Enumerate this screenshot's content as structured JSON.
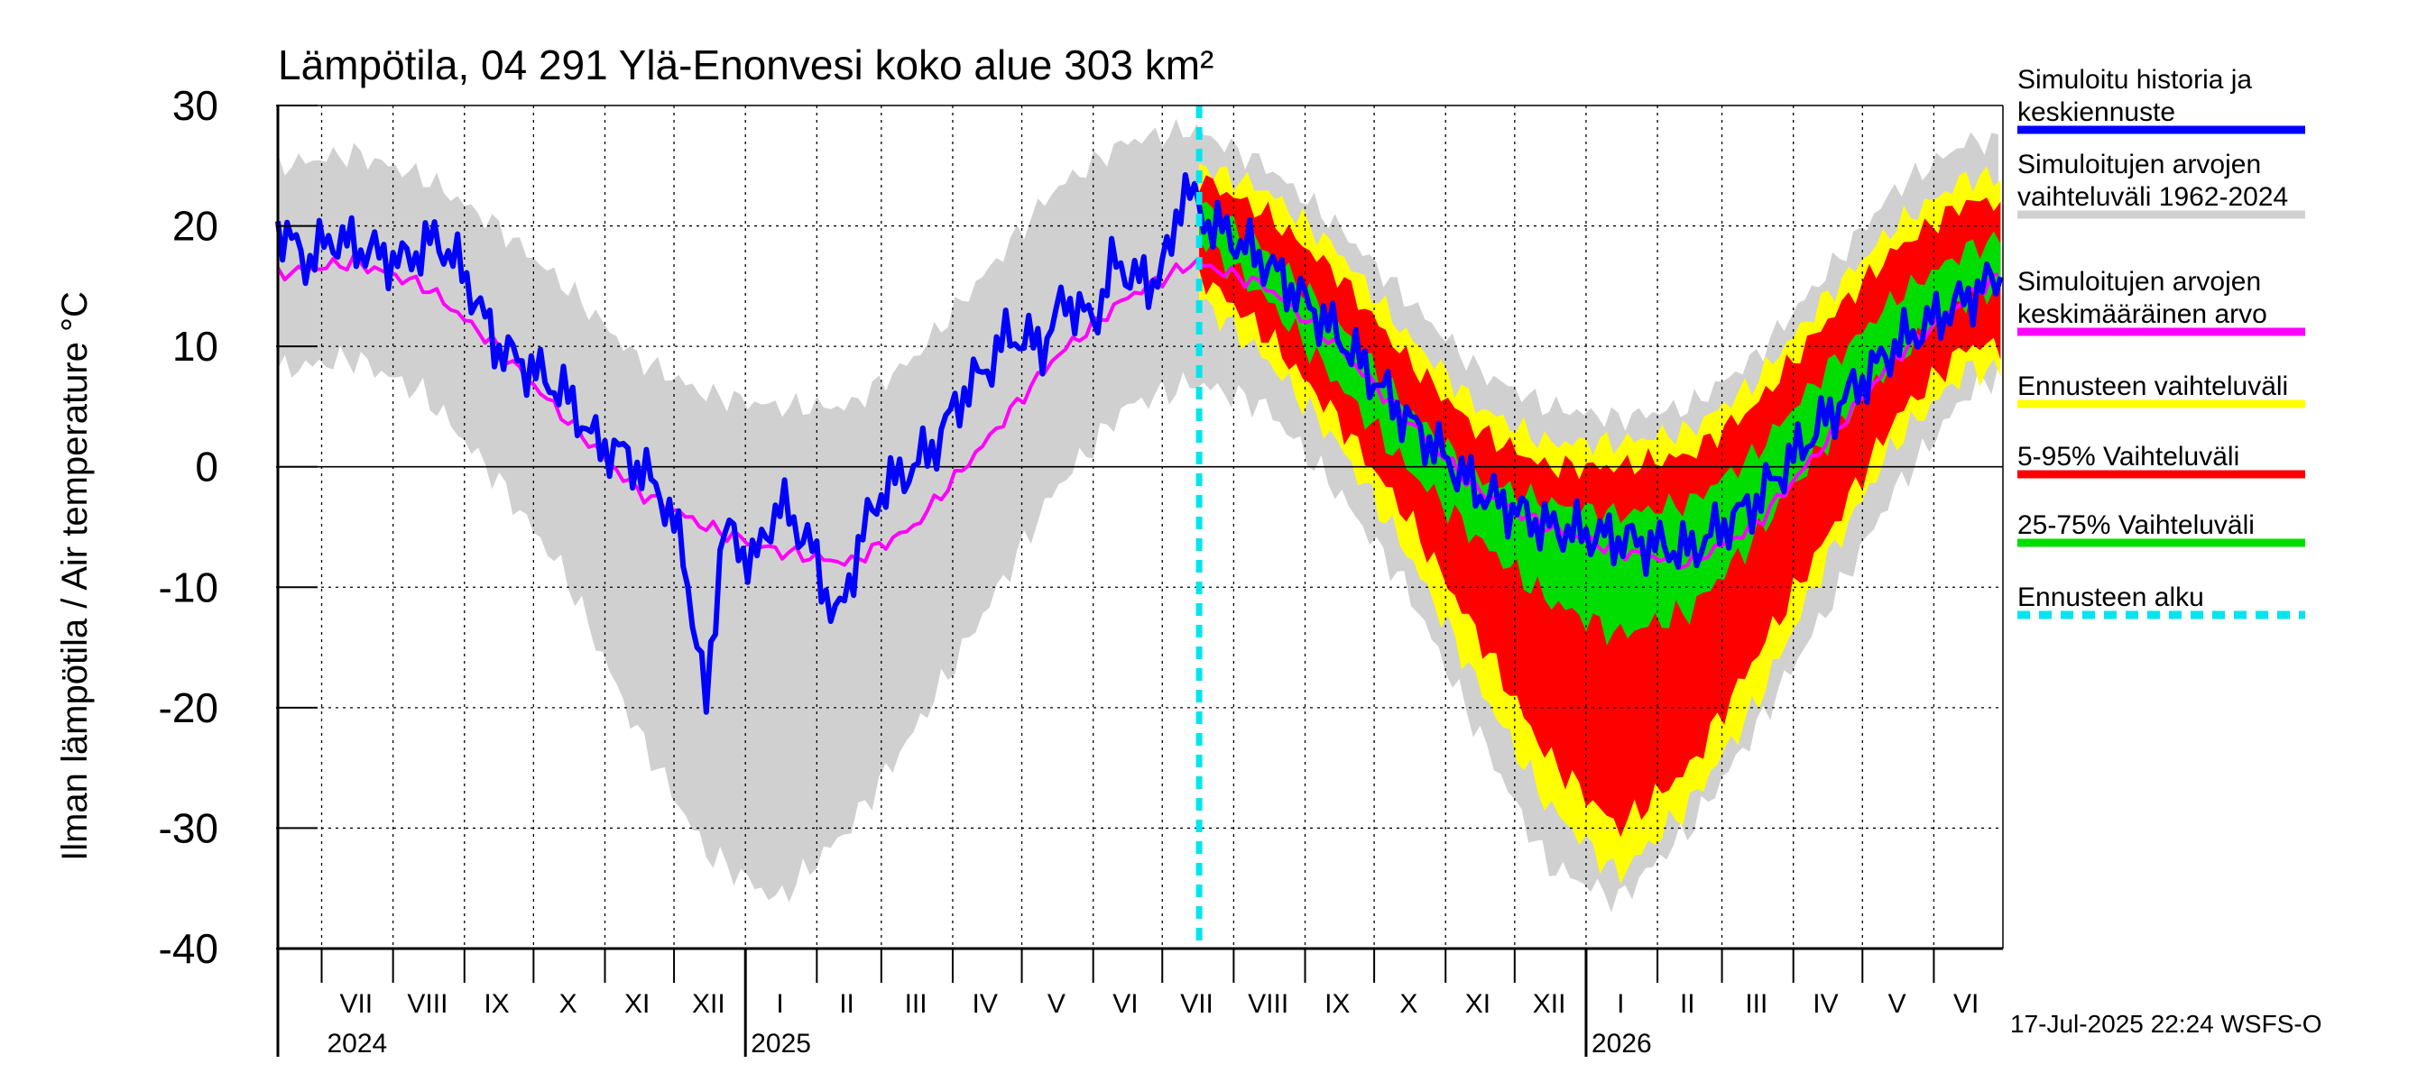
{
  "chart_data": {
    "type": "area",
    "title": "Lämpötila, 04 291 Ylä-Enonvesi koko alue 303 km²",
    "ylabel": "Ilman lämpötila / Air temperature   °C",
    "xlabel": "",
    "ylim": [
      -40,
      30
    ],
    "yticks": [
      30,
      20,
      10,
      0,
      -10,
      -20,
      -30,
      -40
    ],
    "x_range": [
      "2024-06-12",
      "2026-07-01"
    ],
    "forecast_start": "2025-07-17",
    "grid": true,
    "legend_position": "right",
    "month_labels": [
      {
        "label": "VII",
        "date": "2024-07-16"
      },
      {
        "label": "VIII",
        "date": "2024-08-16"
      },
      {
        "label": "IX",
        "date": "2024-09-15"
      },
      {
        "label": "X",
        "date": "2024-10-16"
      },
      {
        "label": "XI",
        "date": "2024-11-15"
      },
      {
        "label": "XII",
        "date": "2024-12-16"
      },
      {
        "label": "I",
        "date": "2025-01-16"
      },
      {
        "label": "II",
        "date": "2025-02-14"
      },
      {
        "label": "III",
        "date": "2025-03-16"
      },
      {
        "label": "IV",
        "date": "2025-04-15"
      },
      {
        "label": "V",
        "date": "2025-05-16"
      },
      {
        "label": "VI",
        "date": "2025-06-15"
      },
      {
        "label": "VII",
        "date": "2025-07-16"
      },
      {
        "label": "VIII",
        "date": "2025-08-16"
      },
      {
        "label": "IX",
        "date": "2025-09-15"
      },
      {
        "label": "X",
        "date": "2025-10-16"
      },
      {
        "label": "XI",
        "date": "2025-11-15"
      },
      {
        "label": "XII",
        "date": "2025-12-16"
      },
      {
        "label": "I",
        "date": "2026-01-16"
      },
      {
        "label": "II",
        "date": "2026-02-14"
      },
      {
        "label": "III",
        "date": "2026-03-16"
      },
      {
        "label": "IV",
        "date": "2026-04-15"
      },
      {
        "label": "V",
        "date": "2026-05-16"
      },
      {
        "label": "VI",
        "date": "2026-06-15"
      }
    ],
    "year_labels": [
      {
        "label": "2024",
        "date": "2024-07-01"
      },
      {
        "label": "2025",
        "date": "2025-01-01"
      },
      {
        "label": "2026",
        "date": "2026-01-01"
      }
    ],
    "series": [
      {
        "name": "Simuloitujen arvojen vaihteluväli 1962-2024",
        "style": "band",
        "color": "#d0d0d0",
        "x": [
          "2024-06-12",
          "2024-07-15",
          "2024-08-15",
          "2024-09-15",
          "2024-10-15",
          "2024-11-15",
          "2024-12-15",
          "2025-01-15",
          "2025-02-15",
          "2025-03-15",
          "2025-04-15",
          "2025-05-15",
          "2025-06-15",
          "2025-07-15",
          "2025-08-15",
          "2025-09-15",
          "2025-10-15",
          "2025-11-15",
          "2025-12-15",
          "2026-01-15",
          "2026-02-15",
          "2026-03-15",
          "2026-04-15",
          "2026-05-15",
          "2026-06-15",
          "2026-07-01"
        ],
        "upper": [
          25,
          26,
          24,
          20,
          15,
          9,
          6,
          5,
          5,
          9,
          16,
          23,
          27,
          28,
          25,
          20,
          14,
          8,
          5,
          4,
          5,
          9,
          16,
          23,
          27,
          27
        ],
        "lower": [
          8,
          9,
          6,
          -1,
          -9,
          -22,
          -32,
          -36,
          -30,
          -22,
          -12,
          -2,
          5,
          7,
          5,
          -2,
          -10,
          -22,
          -33,
          -36,
          -30,
          -22,
          -12,
          -2,
          6,
          8
        ]
      },
      {
        "name": "Ennusteen vaihteluväli",
        "style": "band",
        "color": "#ffff00",
        "x": [
          "2025-07-17",
          "2025-08-15",
          "2025-09-15",
          "2025-10-15",
          "2025-11-15",
          "2025-12-15",
          "2026-01-15",
          "2026-02-15",
          "2026-03-15",
          "2026-04-15",
          "2026-05-15",
          "2026-06-15",
          "2026-07-01"
        ],
        "upper": [
          25,
          23,
          18,
          11,
          5,
          2,
          2,
          3,
          7,
          14,
          20,
          24,
          24
        ],
        "lower": [
          14,
          9,
          2,
          -7,
          -18,
          -28,
          -34,
          -28,
          -20,
          -8,
          2,
          8,
          8
        ]
      },
      {
        "name": "5-95% Vaihteluväli",
        "style": "band",
        "color": "#ff0000",
        "x": [
          "2025-07-17",
          "2025-08-15",
          "2025-09-15",
          "2025-10-15",
          "2025-11-15",
          "2025-12-15",
          "2026-01-15",
          "2026-02-15",
          "2026-03-15",
          "2026-04-15",
          "2026-05-15",
          "2026-06-15",
          "2026-07-01"
        ],
        "upper": [
          24,
          21,
          16,
          9,
          3,
          0,
          0,
          1,
          5,
          12,
          18,
          22,
          22
        ],
        "lower": [
          16,
          11,
          4,
          -4,
          -14,
          -24,
          -30,
          -25,
          -16,
          -6,
          4,
          10,
          10
        ]
      },
      {
        "name": "25-75% Vaihteluväli",
        "style": "band",
        "color": "#00dd00",
        "x": [
          "2025-07-17",
          "2025-08-15",
          "2025-09-15",
          "2025-10-15",
          "2025-11-15",
          "2025-12-15",
          "2026-01-15",
          "2026-02-15",
          "2026-03-15",
          "2026-04-15",
          "2026-05-15",
          "2026-06-15",
          "2026-07-01"
        ],
        "upper": [
          22,
          18,
          12,
          5,
          -1,
          -3,
          -4,
          -3,
          1,
          8,
          14,
          18,
          19
        ],
        "lower": [
          19,
          14,
          7,
          0,
          -6,
          -11,
          -14,
          -12,
          -6,
          2,
          9,
          14,
          15
        ]
      },
      {
        "name": "Simuloitujen arvojen keskimääräinen arvo",
        "style": "line",
        "color": "#ff00ff",
        "x": [
          "2024-06-12",
          "2024-07-15",
          "2024-08-15",
          "2024-09-15",
          "2024-10-15",
          "2024-11-15",
          "2024-12-15",
          "2025-01-15",
          "2025-02-15",
          "2025-03-15",
          "2025-04-15",
          "2025-05-15",
          "2025-06-15",
          "2025-07-15",
          "2025-08-15",
          "2025-09-15",
          "2025-10-15",
          "2025-11-15",
          "2025-12-15",
          "2026-01-15",
          "2026-02-15",
          "2026-03-15",
          "2026-04-15",
          "2026-05-15",
          "2026-06-15",
          "2026-07-01"
        ],
        "values": [
          16,
          17,
          15,
          10,
          4,
          -2,
          -5,
          -7,
          -8,
          -5,
          2,
          9,
          14,
          17,
          15,
          10,
          4,
          -2,
          -5,
          -7,
          -8,
          -5,
          2,
          9,
          14,
          16
        ]
      },
      {
        "name": "Simuloitu historia ja keskiennuste",
        "style": "line",
        "color": "#0000ff",
        "x": [
          "2024-06-12",
          "2024-06-25",
          "2024-07-05",
          "2024-07-20",
          "2024-08-05",
          "2024-08-20",
          "2024-09-01",
          "2024-09-15",
          "2024-10-01",
          "2024-10-15",
          "2024-10-28",
          "2024-11-10",
          "2024-11-25",
          "2024-12-05",
          "2024-12-15",
          "2024-12-22",
          "2025-01-05",
          "2025-01-15",
          "2025-01-28",
          "2025-02-10",
          "2025-02-20",
          "2025-03-01",
          "2025-03-15",
          "2025-03-25",
          "2025-04-05",
          "2025-04-15",
          "2025-04-25",
          "2025-05-10",
          "2025-05-20",
          "2025-06-01",
          "2025-06-10",
          "2025-06-25",
          "2025-07-05",
          "2025-07-10",
          "2025-07-17",
          "2025-08-15",
          "2025-09-15",
          "2025-10-15",
          "2025-11-15",
          "2025-12-15",
          "2026-01-15",
          "2026-02-15",
          "2026-03-15",
          "2026-04-15",
          "2026-05-15",
          "2026-06-15",
          "2026-07-01"
        ],
        "values": [
          20,
          17,
          19,
          18,
          17,
          19,
          16,
          10,
          8,
          6,
          2,
          1,
          -2,
          -7,
          -20,
          -5,
          -8,
          -3,
          -6,
          -13,
          -6,
          -2,
          0,
          2,
          6,
          8,
          11,
          10,
          14,
          12,
          17,
          15,
          18,
          24,
          21,
          17,
          11,
          4,
          -2,
          -5,
          -6,
          -7,
          -3,
          4,
          10,
          14,
          16
        ]
      }
    ],
    "legend": [
      {
        "label": "Simuloitu historia ja keskiennuste",
        "color": "#0000ff",
        "style": "line"
      },
      {
        "label": "Simuloitujen arvojen vaihteluväli 1962-2024",
        "color": "#d0d0d0",
        "style": "line"
      },
      {
        "label": "Simuloitujen arvojen keskimääräinen arvo",
        "color": "#ff00ff",
        "style": "line"
      },
      {
        "label": "Ennusteen vaihteluväli",
        "color": "#ffff00",
        "style": "line"
      },
      {
        "label": "5-95% Vaihteluväli",
        "color": "#ff0000",
        "style": "line"
      },
      {
        "label": "25-75% Vaihteluväli",
        "color": "#00dd00",
        "style": "line"
      },
      {
        "label": "Ennusteen alku",
        "color": "#00e5ee",
        "style": "dashed"
      }
    ],
    "legend_label_lines": [
      [
        "Simuloitu historia ja",
        "keskiennuste"
      ],
      [
        "Simuloitujen arvojen",
        "vaihteluväli 1962-2024"
      ],
      [
        "Simuloitujen arvojen",
        "keskimääräinen arvo"
      ],
      [
        "Ennusteen vaihteluväli"
      ],
      [
        "5-95% Vaihteluväli"
      ],
      [
        "25-75% Vaihteluväli"
      ],
      [
        "Ennusteen alku"
      ]
    ],
    "footer": "17-Jul-2025 22:24 WSFS-O"
  }
}
